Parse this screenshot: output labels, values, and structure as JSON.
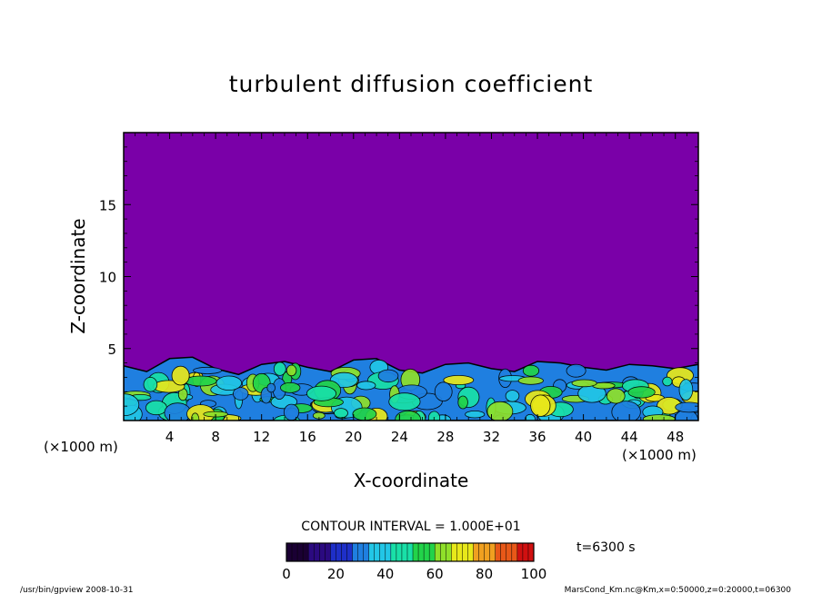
{
  "chart_data": {
    "type": "heatmap",
    "title": "turbulent diffusion coefficient",
    "xlabel": "X-coordinate",
    "ylabel": "Z-coordinate",
    "x_unit": "(×1000 m)",
    "y_unit": "(×1000 m)",
    "xlim": [
      0,
      50
    ],
    "ylim": [
      0,
      20
    ],
    "x_ticks": [
      4,
      8,
      12,
      16,
      20,
      24,
      28,
      32,
      36,
      40,
      44,
      48
    ],
    "y_ticks": [
      5,
      10,
      15
    ],
    "contour_interval_label": "CONTOUR INTERVAL = 1.000E+01",
    "time_label": "t=6300 s",
    "colorbar": {
      "min": 0,
      "max": 100,
      "ticks": [
        0,
        20,
        40,
        60,
        80,
        100
      ],
      "colors": [
        "#1a0033",
        "#2b0a80",
        "#1e2fc8",
        "#1f7fe0",
        "#22c6e6",
        "#19e0a8",
        "#22d34a",
        "#8fe02a",
        "#e8e81a",
        "#f0a020",
        "#e85818",
        "#d01010"
      ]
    },
    "background_color": "#7a00a8",
    "boundary_layer_top_km": [
      3.8,
      3.4,
      4.3,
      4.4,
      3.6,
      3.2,
      3.9,
      4.1,
      3.7,
      3.4,
      4.2,
      4.3,
      3.5,
      3.3,
      3.9,
      4.0,
      3.6,
      3.4,
      4.1,
      4.0,
      3.7,
      3.5,
      3.9,
      3.8,
      3.6,
      3.9
    ]
  },
  "footer": {
    "left": "/usr/bin/gpview   2008-10-31",
    "right": "MarsCond_Km.nc@Km,x=0:50000,z=0:20000,t=06300"
  }
}
